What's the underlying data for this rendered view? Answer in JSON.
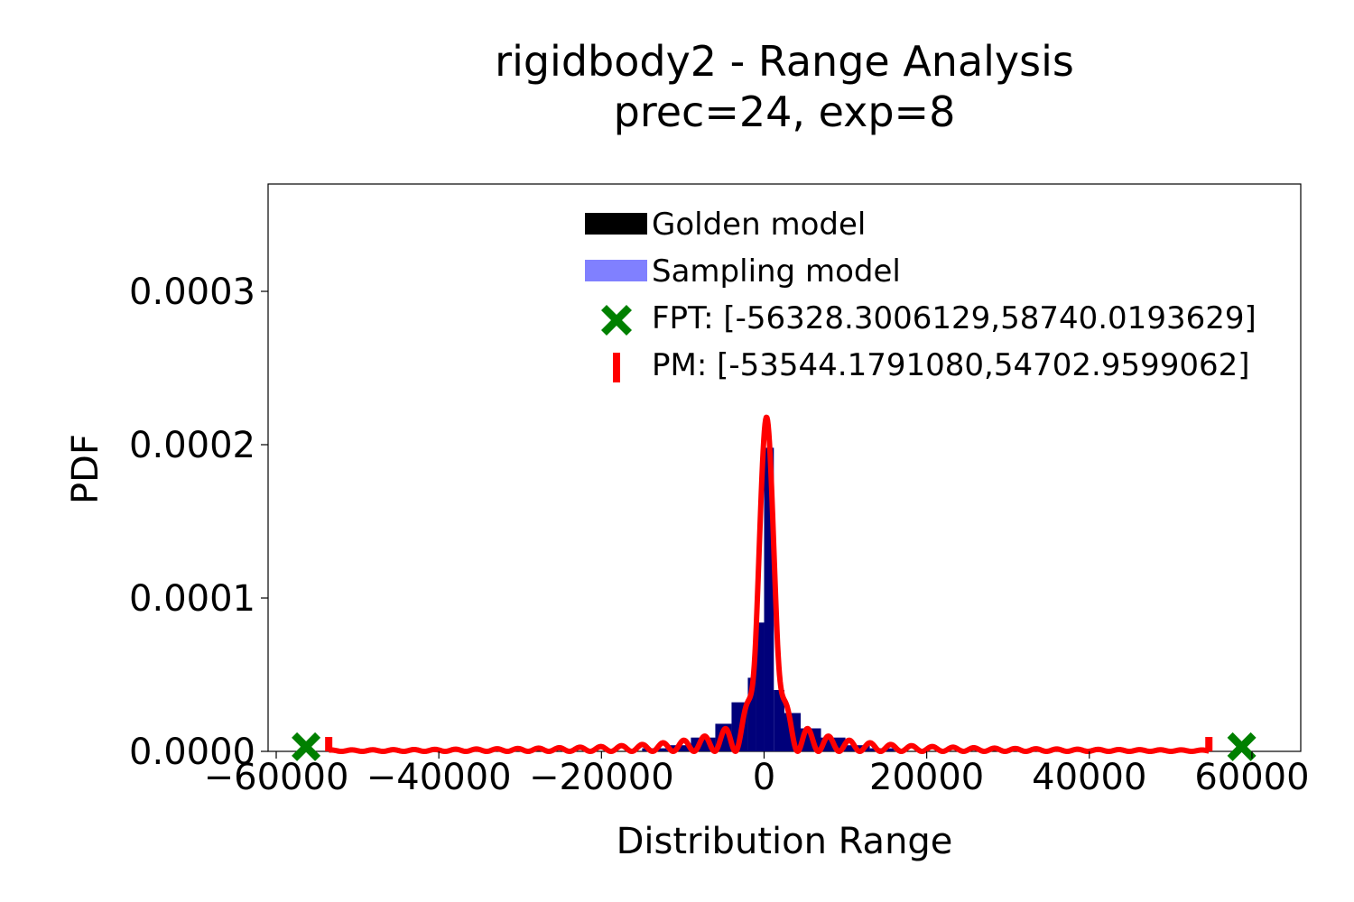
{
  "chart_data": {
    "type": "histogram+line",
    "title": [
      "rigidbody2 - Range Analysis",
      "prec=24, exp=8"
    ],
    "xlabel": "Distribution Range",
    "ylabel": "PDF",
    "xlim": [
      -61000,
      66000
    ],
    "ylim": [
      0,
      0.00037
    ],
    "x_ticks": [
      -60000,
      -40000,
      -20000,
      0,
      20000,
      40000,
      60000
    ],
    "x_tick_labels": [
      "−60000",
      "−40000",
      "−20000",
      "0",
      "20000",
      "40000",
      "60000"
    ],
    "y_ticks": [
      0,
      0.0001,
      0.0002,
      0.0003
    ],
    "y_tick_labels": [
      "0.0000",
      "0.0001",
      "0.0002",
      "0.0003"
    ],
    "grid": false,
    "legend_position": "top-center",
    "legend": [
      {
        "name": "Golden model",
        "marker": "rect",
        "color": "#000000"
      },
      {
        "name": "Sampling model",
        "marker": "rect",
        "color": "#8080ff"
      },
      {
        "name": "FPT: [-56328.3006129,58740.0193629]",
        "marker": "x",
        "color": "#008000"
      },
      {
        "name": "PM: [-53544.1791080,54702.9599062]",
        "marker": "vline",
        "color": "#ff0000"
      }
    ],
    "histogram": {
      "color": "#00007a",
      "bins": [
        {
          "x0": -15000,
          "x1": -12000,
          "y": 2e-06
        },
        {
          "x0": -12000,
          "x1": -9000,
          "y": 4e-06
        },
        {
          "x0": -9000,
          "x1": -6000,
          "y": 9e-06
        },
        {
          "x0": -6000,
          "x1": -4000,
          "y": 1.8e-05
        },
        {
          "x0": -4000,
          "x1": -2000,
          "y": 3.2e-05
        },
        {
          "x0": -2000,
          "x1": -1000,
          "y": 4.8e-05
        },
        {
          "x0": -1000,
          "x1": 0,
          "y": 8.4e-05
        },
        {
          "x0": 0,
          "x1": 1200,
          "y": 0.000198
        },
        {
          "x0": 1200,
          "x1": 2500,
          "y": 4e-05
        },
        {
          "x0": 2500,
          "x1": 4500,
          "y": 2.5e-05
        },
        {
          "x0": 4500,
          "x1": 7000,
          "y": 1.5e-05
        },
        {
          "x0": 7000,
          "x1": 10000,
          "y": 9e-06
        },
        {
          "x0": 10000,
          "x1": 13000,
          "y": 4e-06
        },
        {
          "x0": 13000,
          "x1": 16000,
          "y": 2e-06
        }
      ]
    },
    "pm_curve": {
      "color": "#ff0000",
      "x_range": [
        -53544.179108,
        54702.9599062
      ],
      "peak_x": 300,
      "peak_y": 0.000218,
      "oscillation_period": 2550,
      "envelope_scale": 3000
    },
    "fpt_markers": {
      "color": "#008000",
      "x": [
        -56328.3006129,
        58740.0193629
      ],
      "y": 3e-06
    },
    "pm_markers": {
      "color": "#ff0000",
      "x": [
        -53544.179108,
        54702.9599062
      ]
    }
  }
}
